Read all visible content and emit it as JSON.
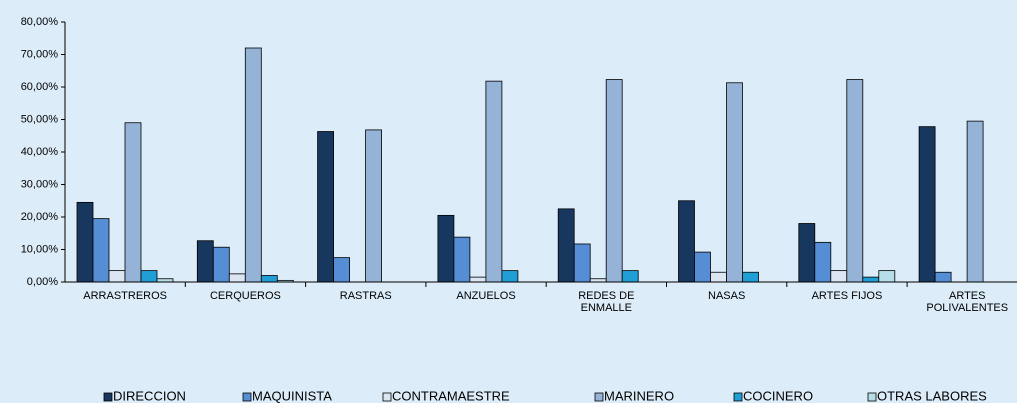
{
  "chart_data": {
    "type": "bar",
    "categories": [
      "ARRASTREROS",
      "CERQUEROS",
      "RASTRAS",
      "ANZUELOS",
      "REDES DE ENMALLE",
      "NASAS",
      "ARTES FIJOS",
      "ARTES POLIVALENTES"
    ],
    "series": [
      {
        "name": "DIRECCION",
        "color": "#17375e",
        "values": [
          24.5,
          12.7,
          46.3,
          20.5,
          22.5,
          25,
          18,
          47.8
        ]
      },
      {
        "name": "MAQUINISTA",
        "color": "#558ed5",
        "values": [
          19.5,
          10.7,
          7.5,
          13.8,
          11.7,
          9.2,
          12.2,
          3
        ]
      },
      {
        "name": "CONTRAMAESTRE",
        "color": "#dce6f2",
        "values": [
          3.5,
          2.5,
          0,
          1.5,
          1,
          3,
          3.5,
          0
        ]
      },
      {
        "name": "MARINERO",
        "color": "#95b3d7",
        "values": [
          49,
          72,
          46.8,
          61.8,
          62.3,
          61.3,
          62.3,
          49.5
        ]
      },
      {
        "name": "COCINERO",
        "color": "#1f9fd6",
        "values": [
          3.5,
          2,
          0,
          3.5,
          3.5,
          3,
          1.5,
          0
        ]
      },
      {
        "name": "OTRAS LABORES",
        "color": "#b7dee8",
        "values": [
          1,
          0.5,
          0,
          0,
          0,
          0,
          3.5,
          0
        ]
      }
    ],
    "ylim": [
      0,
      80
    ],
    "yticks": [
      {
        "value": 0,
        "label": "0,00%"
      },
      {
        "value": 10,
        "label": "10,00%"
      },
      {
        "value": 20,
        "label": "20,00%"
      },
      {
        "value": 30,
        "label": "30,00%"
      },
      {
        "value": 40,
        "label": "40,00%"
      },
      {
        "value": 50,
        "label": "50,00%"
      },
      {
        "value": 60,
        "label": "60,00%"
      },
      {
        "value": 70,
        "label": "70,00%"
      },
      {
        "value": 80,
        "label": "80,00%"
      }
    ],
    "legend": "bottom"
  }
}
